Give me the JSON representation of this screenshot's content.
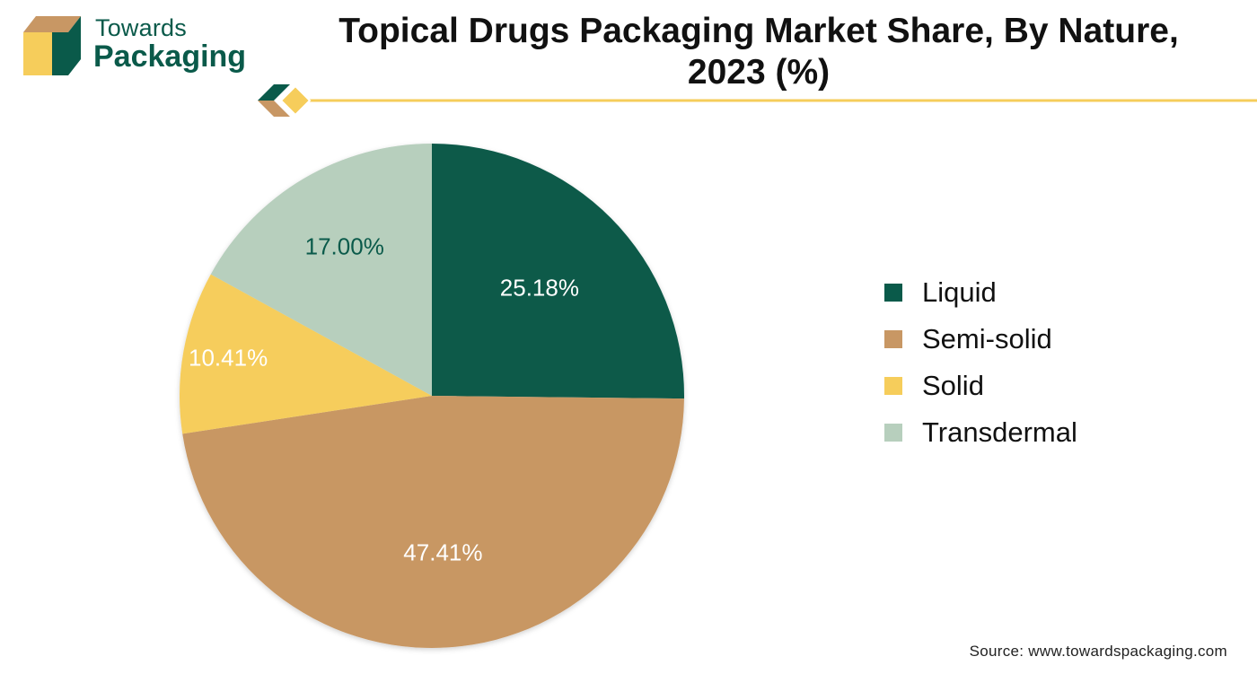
{
  "brand": {
    "line1": "Towards",
    "line2": "Packaging",
    "colors": {
      "green": "#0a5a4a",
      "tan": "#c89764",
      "yellow": "#f6cd5b"
    }
  },
  "chart_data": {
    "type": "pie",
    "title": "Topical Drugs Packaging Market Share, By Nature, 2023 (%)",
    "categories": [
      "Liquid",
      "Semi-solid",
      "Solid",
      "Transdermal"
    ],
    "values": [
      25.18,
      47.41,
      10.41,
      17.0
    ],
    "data_labels": [
      "25.18%",
      "47.41%",
      "10.41%",
      "17.00%"
    ],
    "colors": [
      "#0a5a4a",
      "#c89764",
      "#f6cd5b",
      "#b7cfbd"
    ],
    "label_colors": [
      "#ffffff",
      "#ffffff",
      "#ffffff",
      "#0a5a4a"
    ],
    "legend": {
      "position": "right"
    }
  },
  "source": "Source: www.towardspackaging.com"
}
